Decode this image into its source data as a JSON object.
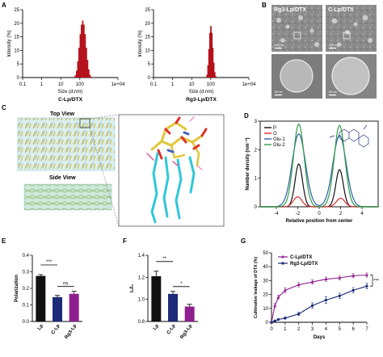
{
  "panel_letters": [
    "A",
    "B",
    "C",
    "D",
    "E",
    "F",
    "G"
  ],
  "colors": {
    "dark_red": "#b5121b",
    "black": "#111111",
    "navy": "#1c2a78",
    "purple": "#8e1f8e",
    "cyan": "#2ec8d8",
    "green": "#2e9e46",
    "blue": "#2f5fa8",
    "red": "#e03030"
  },
  "panel_b": {
    "labels": [
      "Rg3-Lp/DTX",
      "C-Lp/DTX"
    ],
    "scale_text": [
      "50 nm",
      "200 nm",
      "50 nm",
      "200 nm"
    ]
  },
  "panel_c": {
    "top_view": "Top View",
    "side_view": "Side View"
  },
  "chart_data": [
    {
      "id": "A1",
      "type": "bar",
      "title": "C-Lp/DTX",
      "xlabel": "Size (d.nm)",
      "ylabel": "Intensity (%)",
      "x_scale": "log",
      "xlim": [
        0.1,
        10000
      ],
      "ylim": [
        0,
        25
      ],
      "xticks": [
        "0.1",
        "1",
        "10",
        "100",
        "1e+04"
      ],
      "yticks": [
        "0",
        "5",
        "10",
        "15",
        "20",
        "25"
      ],
      "x": [
        58,
        68,
        79,
        91,
        106,
        122,
        142,
        164,
        190,
        220,
        255,
        295,
        342,
        396
      ],
      "values": [
        0.8,
        2.5,
        6.0,
        11.0,
        16.0,
        19.5,
        21.0,
        19.5,
        16.0,
        11.0,
        6.5,
        3.0,
        1.0,
        0.3
      ]
    },
    {
      "id": "A2",
      "type": "bar",
      "title": "Rg3-Lp/DTX",
      "xlabel": "Size (d.nm)",
      "ylabel": "Intensity (%)",
      "x_scale": "log",
      "xlim": [
        0.1,
        10000
      ],
      "ylim": [
        0,
        25
      ],
      "xticks": [
        "0.1",
        "1",
        "10",
        "100",
        "1e+04"
      ],
      "yticks": [
        "0",
        "5",
        "10",
        "15",
        "20",
        "25"
      ],
      "x": [
        64,
        72,
        81,
        91,
        102,
        115,
        129,
        145,
        163,
        183
      ],
      "values": [
        1.0,
        4.5,
        10.5,
        16.5,
        19.0,
        16.5,
        11.0,
        5.5,
        2.0,
        0.5
      ]
    },
    {
      "id": "D",
      "type": "line",
      "xlabel": "Relative position from center",
      "ylabel": "Number density (nm⁻³)",
      "xlim": [
        -5.5,
        5.5
      ],
      "ylim": [
        0,
        3
      ],
      "xticks": [
        "-4",
        "-2",
        "0",
        "2",
        "4"
      ],
      "yticks": [
        "0",
        "1",
        "2",
        "3"
      ],
      "series": [
        {
          "name": "P",
          "color": "#111111",
          "peaks": [
            [
              -1.9,
              1.5,
              0.35
            ],
            [
              1.9,
              1.3,
              0.35
            ]
          ]
        },
        {
          "name": "O",
          "color": "#e03030",
          "peaks": [
            [
              -2.0,
              0.35,
              0.4
            ],
            [
              2.0,
              0.3,
              0.4
            ]
          ]
        },
        {
          "name": "Glu-1",
          "color": "#2f5fa8",
          "peaks": [
            [
              -1.9,
              2.55,
              0.62
            ],
            [
              1.9,
              2.5,
              0.62
            ]
          ]
        },
        {
          "name": "Glu-2",
          "color": "#2e9e46",
          "peaks": [
            [
              -1.9,
              2.9,
              0.5
            ],
            [
              1.9,
              2.85,
              0.5
            ]
          ]
        }
      ]
    },
    {
      "id": "E",
      "type": "bar",
      "ylabel": "Polarization",
      "ylim": [
        0,
        0.4
      ],
      "yticks": [
        "0.0",
        "0.1",
        "0.2",
        "0.3",
        "0.4"
      ],
      "categories": [
        "Lp",
        "C-Lp",
        "Rg3-Lp"
      ],
      "values": [
        0.275,
        0.147,
        0.167
      ],
      "errors": [
        0.008,
        0.01,
        0.015
      ],
      "bar_colors": [
        "#111111",
        "#1c2a78",
        "#8e1f8e"
      ],
      "annotations": [
        {
          "pair": [
            0,
            1
          ],
          "label": "***"
        },
        {
          "pair": [
            1,
            2
          ],
          "label": "ns"
        }
      ]
    },
    {
      "id": "F",
      "type": "bar",
      "ylabel": "I₁/I₃",
      "ylim": [
        0.8,
        1.4
      ],
      "yticks": [
        "0.8",
        "1.0",
        "1.2",
        "1.4"
      ],
      "categories": [
        "Lp",
        "C-Lp",
        "Rg3-Lp"
      ],
      "values": [
        1.21,
        1.05,
        0.935
      ],
      "errors": [
        0.045,
        0.022,
        0.02
      ],
      "bar_colors": [
        "#111111",
        "#1c2a78",
        "#8e1f8e"
      ],
      "annotations": [
        {
          "pair": [
            0,
            1
          ],
          "label": "**"
        },
        {
          "pair": [
            1,
            2
          ],
          "label": "*"
        }
      ]
    },
    {
      "id": "G",
      "type": "line",
      "xlabel": "Days",
      "ylabel": "Cultimative leakage of DTX (%)",
      "xlim": [
        0,
        7
      ],
      "ylim": [
        0,
        50
      ],
      "xticks": [
        "0",
        "1",
        "2",
        "3",
        "4",
        "5",
        "6",
        "7"
      ],
      "yticks": [
        "0",
        "10",
        "20",
        "30",
        "40",
        "50"
      ],
      "annotation": "***",
      "series": [
        {
          "name": "C-Lp/DTX",
          "color": "#8e1f8e",
          "marker": "triangle",
          "x": [
            0,
            0.25,
            0.5,
            1,
            2,
            3,
            4,
            5,
            6,
            7
          ],
          "y": [
            0,
            12,
            18,
            23,
            27,
            29,
            31,
            32,
            33.5,
            34
          ],
          "err": [
            0,
            1.5,
            1.5,
            1.8,
            1.5,
            1.5,
            1.5,
            1.5,
            1.5,
            1.5
          ]
        },
        {
          "name": "Rg3-Lp/DTX",
          "color": "#1c2a78",
          "marker": "circle",
          "x": [
            0,
            0.25,
            0.5,
            1,
            2,
            3,
            4,
            5,
            6,
            7
          ],
          "y": [
            0,
            1,
            2,
            3,
            6,
            12,
            16,
            19,
            23,
            26
          ],
          "err": [
            0,
            0.5,
            0.6,
            0.8,
            1.2,
            2.0,
            2.5,
            2.0,
            2.0,
            2.0
          ]
        }
      ]
    }
  ]
}
